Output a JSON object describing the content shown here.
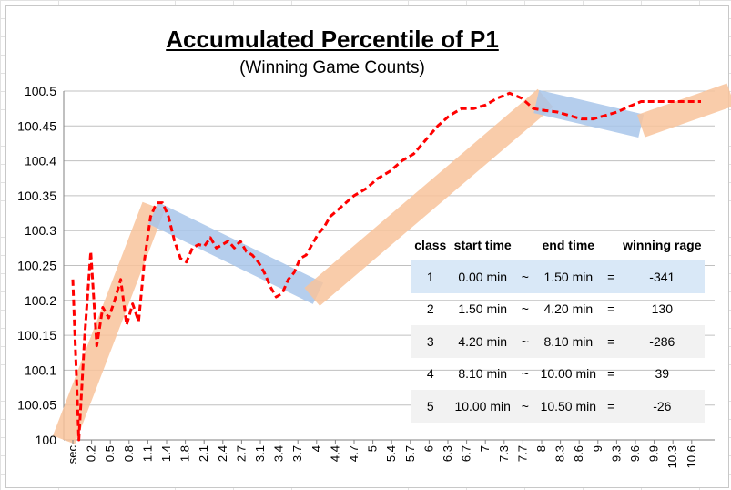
{
  "chart_data": {
    "type": "line",
    "title": "Accumulated Percentile of P1",
    "subtitle": "(Winning  Game Counts)",
    "xlabel": "",
    "ylabel": "",
    "ylim": [
      100,
      100.5
    ],
    "y_ticks": [
      "100",
      "100.05",
      "100.1",
      "100.15",
      "100.2",
      "100.25",
      "100.3",
      "100.35",
      "100.4",
      "100.45",
      "100.5"
    ],
    "x_tick_labels": [
      "sec",
      "0.2",
      "0.5",
      "0.8",
      "1.1",
      "1.4",
      "1.8",
      "2.1",
      "2.4",
      "2.7",
      "3.1",
      "3.4",
      "3.7",
      "4",
      "4.4",
      "4.7",
      "5",
      "5.4",
      "5.7",
      "6",
      "6.3",
      "6.7",
      "7",
      "7.3",
      "7.7",
      "8",
      "8.3",
      "8.6",
      "9",
      "9.3",
      "9.6",
      "9.9",
      "10.3",
      "10.6"
    ],
    "series": [
      {
        "color": "#ff0000",
        "style": "dashed",
        "x": [
          0,
          0.1,
          0.2,
          0.3,
          0.4,
          0.5,
          0.6,
          0.7,
          0.8,
          0.9,
          1.0,
          1.1,
          1.2,
          1.3,
          1.4,
          1.5,
          1.6,
          1.7,
          1.8,
          1.9,
          2.0,
          2.1,
          2.2,
          2.3,
          2.4,
          2.5,
          2.6,
          2.7,
          2.8,
          2.9,
          3.0,
          3.1,
          3.2,
          3.3,
          3.4,
          3.5,
          3.6,
          3.7,
          3.8,
          3.9,
          4.0,
          4.1,
          4.2,
          4.3,
          4.5,
          4.7,
          4.9,
          5.1,
          5.3,
          5.5,
          5.7,
          5.9,
          6.1,
          6.3,
          6.5,
          6.7,
          6.9,
          7.1,
          7.3,
          7.5,
          7.7,
          7.9,
          8.1,
          8.3,
          8.5,
          8.7,
          8.9,
          9.1,
          9.3,
          9.5,
          9.7,
          9.9,
          10.1,
          10.3,
          10.5
        ],
        "values": [
          100.23,
          100.0,
          100.15,
          100.27,
          100.135,
          100.19,
          100.175,
          100.2,
          100.23,
          100.165,
          100.195,
          100.17,
          100.26,
          100.32,
          100.34,
          100.34,
          100.32,
          100.285,
          100.26,
          100.255,
          100.275,
          100.28,
          100.278,
          100.29,
          100.275,
          100.28,
          100.285,
          100.275,
          100.285,
          100.27,
          100.265,
          100.255,
          100.24,
          100.22,
          100.205,
          100.21,
          100.23,
          100.24,
          100.26,
          100.265,
          100.28,
          100.295,
          100.305,
          100.32,
          100.335,
          100.35,
          100.36,
          100.375,
          100.385,
          100.4,
          100.41,
          100.43,
          100.45,
          100.465,
          100.475,
          100.475,
          100.48,
          100.49,
          100.497,
          100.49,
          100.475,
          100.472,
          100.47,
          100.465,
          100.46,
          100.46,
          100.465,
          100.47,
          100.478,
          100.485,
          100.485,
          100.485,
          100.485,
          100.485,
          100.485
        ]
      }
    ],
    "bands": [
      {
        "color": "#f9c49c",
        "from": [
          -0.15,
          100.0
        ],
        "to": [
          1.35,
          100.335
        ]
      },
      {
        "color": "#a9c6ea",
        "from": [
          1.35,
          100.325
        ],
        "to": [
          4.1,
          100.21
        ]
      },
      {
        "color": "#f9c49c",
        "from": [
          4.0,
          100.205
        ],
        "to": [
          7.9,
          100.49
        ]
      },
      {
        "color": "#a9c6ea",
        "from": [
          7.75,
          100.485
        ],
        "to": [
          9.5,
          100.45
        ]
      },
      {
        "color": "#f9c49c",
        "from": [
          9.5,
          100.45
        ],
        "to": [
          11.0,
          100.495
        ]
      }
    ],
    "grid": true,
    "legend": "none"
  },
  "table": {
    "headers": [
      "class",
      "start time",
      "",
      "end time",
      "",
      "winning rage"
    ],
    "rows": [
      [
        "1",
        "0.00 min",
        "~",
        "1.50 min",
        "=",
        "-341"
      ],
      [
        "2",
        "1.50 min",
        "~",
        "4.20 min",
        "=",
        "130"
      ],
      [
        "3",
        "4.20 min",
        "~",
        "8.10 min",
        "=",
        "-286"
      ],
      [
        "4",
        "8.10 min",
        "~",
        "10.00 min",
        "=",
        "39"
      ],
      [
        "5",
        "10.00 min",
        "~",
        "10.50 min",
        "=",
        "-26"
      ]
    ]
  }
}
